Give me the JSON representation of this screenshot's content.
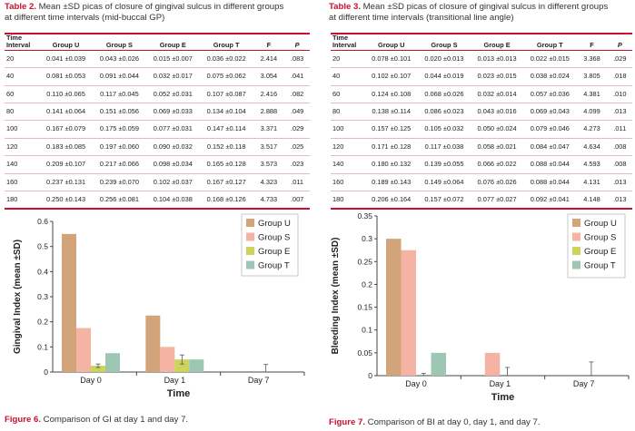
{
  "table2": {
    "label": "Table 2.",
    "caption_line1": " Mean ±SD picas of closure of gingival sulcus in different groups",
    "caption_line2": "at different time intervals (mid-buccal GP)",
    "headers": [
      "Time Interval",
      "Group U",
      "Group S",
      "Group E",
      "Group T",
      "F",
      "P"
    ],
    "rows": [
      [
        "20",
        "0.041 ±0.039",
        "0.043 ±0.026",
        "0.015 ±0.007",
        "0.036 ±0.022",
        "2.414",
        ".083"
      ],
      [
        "40",
        "0.081 ±0.053",
        "0.091 ±0.044",
        "0.032 ±0.017",
        "0.075 ±0.062",
        "3.054",
        ".041"
      ],
      [
        "60",
        "0.110 ±0.065",
        "0.117 ±0.045",
        "0.052 ±0.031",
        "0.107 ±0.087",
        "2.416",
        ".082"
      ],
      [
        "80",
        "0.141 ±0.064",
        "0.151 ±0.056",
        "0.069 ±0.033",
        "0.134 ±0.104",
        "2.888",
        ".049"
      ],
      [
        "100",
        "0.167 ±0.079",
        "0.175 ±0.059",
        "0.077 ±0.031",
        "0.147 ±0.114",
        "3.371",
        ".029"
      ],
      [
        "120",
        "0.183 ±0.085",
        "0.197 ±0.060",
        "0.090 ±0.032",
        "0.152 ±0.118",
        "3.517",
        ".025"
      ],
      [
        "140",
        "0.209 ±0.107",
        "0.217 ±0.066",
        "0.098 ±0.034",
        "0.165 ±0.128",
        "3.573",
        ".023"
      ],
      [
        "160",
        "0.237 ±0.131",
        "0.239 ±0.070",
        "0.102 ±0.037",
        "0.167 ±0.127",
        "4.323",
        ".011"
      ],
      [
        "180",
        "0.250 ±0.143",
        "0.256 ±0.081",
        "0.104 ±0.038",
        "0.168 ±0.126",
        "4.733",
        ".007"
      ]
    ]
  },
  "table3": {
    "label": "Table 3.",
    "caption_line1": " Mean ±SD picas of closure of gingival sulcus in different groups",
    "caption_line2": "at different time intervals (transitional line angle)",
    "headers": [
      "Time Interval",
      "Group U",
      "Group S",
      "Group E",
      "Group T",
      "F",
      "P"
    ],
    "rows": [
      [
        "20",
        "0.078 ±0.101",
        "0.020 ±0.013",
        "0.013 ±0.013",
        "0.022 ±0.015",
        "3.368",
        ".029"
      ],
      [
        "40",
        "0.102 ±0.107",
        "0.044 ±0.019",
        "0.023 ±0.015",
        "0.038 ±0.024",
        "3.805",
        ".018"
      ],
      [
        "60",
        "0.124 ±0.108",
        "0.068 ±0.026",
        "0.032 ±0.014",
        "0.057 ±0.036",
        "4.381",
        ".010"
      ],
      [
        "80",
        "0.138 ±0.114",
        "0.086 ±0.023",
        "0.043 ±0.016",
        "0.069 ±0.043",
        "4.099",
        ".013"
      ],
      [
        "100",
        "0.157 ±0.125",
        "0.105 ±0.032",
        "0.050 ±0.024",
        "0.079 ±0.046",
        "4.273",
        ".011"
      ],
      [
        "120",
        "0.171 ±0.128",
        "0.117 ±0.038",
        "0.058 ±0.021",
        "0.084 ±0.047",
        "4.634",
        ".008"
      ],
      [
        "140",
        "0.180 ±0.132",
        "0.139 ±0.055",
        "0.066 ±0.022",
        "0.088 ±0.044",
        "4.593",
        ".008"
      ],
      [
        "160",
        "0.189 ±0.143",
        "0.149 ±0.064",
        "0.076 ±0.026",
        "0.088 ±0.044",
        "4.131",
        ".013"
      ],
      [
        "180",
        "0.206 ±0.164",
        "0.157 ±0.072",
        "0.077 ±0.027",
        "0.092 ±0.041",
        "4.148",
        ".013"
      ]
    ]
  },
  "colors": {
    "accent_red": "#c8102e",
    "group_u": "#d3a37a",
    "group_s": "#f4b3a3",
    "group_e": "#ccd45c",
    "group_t": "#9dc6b3"
  },
  "figure6": {
    "label": "Figure 6.",
    "caption": " Comparison of GI at day 1 and day 7."
  },
  "figure7": {
    "label": "Figure 7.",
    "caption": " Comparison of BI at day 0, day 1, and day 7."
  },
  "chart_data": [
    {
      "type": "bar",
      "ylabel": "Gingival Index (mean ±SD)",
      "xlabel": "Time",
      "categories": [
        "Day 0",
        "Day 1",
        "Day 7"
      ],
      "ylim": [
        0,
        0.6
      ],
      "yticks": [
        0,
        0.1,
        0.2,
        0.3,
        0.4,
        0.5,
        0.6
      ],
      "ytick_labels": [
        "0",
        "0.1",
        "0.2",
        "0.3",
        "0.4",
        "0.5",
        "0.6"
      ],
      "legend": "top-right",
      "series": [
        {
          "name": "Group U",
          "values": [
            0.55,
            0.225,
            0
          ],
          "err": [
            0,
            0,
            0
          ]
        },
        {
          "name": "Group S",
          "values": [
            0.175,
            0.1,
            0
          ],
          "err": [
            0,
            0,
            0
          ]
        },
        {
          "name": "Group E",
          "values": [
            0.025,
            0.05,
            0
          ],
          "err": [
            0.007,
            0.018,
            0.03
          ]
        },
        {
          "name": "Group T",
          "values": [
            0.075,
            0.05,
            0
          ],
          "err": [
            0,
            0,
            0
          ]
        }
      ]
    },
    {
      "type": "bar",
      "ylabel": "Bleeding Index (mean ±SD)",
      "xlabel": "Time",
      "categories": [
        "Day 0",
        "Day 1",
        "Day 7"
      ],
      "ylim": [
        0,
        0.35
      ],
      "yticks": [
        0,
        0.05,
        0.1,
        0.15,
        0.2,
        0.25,
        0.3,
        0.35
      ],
      "ytick_labels": [
        "0",
        "0.05",
        "0.1",
        "0.15",
        "0.2",
        "0.25",
        "0.3",
        "0.35"
      ],
      "legend": "top-right",
      "series": [
        {
          "name": "Group U",
          "values": [
            0.3,
            0,
            0
          ],
          "err": [
            0,
            0,
            0
          ]
        },
        {
          "name": "Group S",
          "values": [
            0.275,
            0.05,
            0
          ],
          "err": [
            0,
            0,
            0
          ]
        },
        {
          "name": "Group E",
          "values": [
            0,
            0,
            0
          ],
          "err": [
            0.005,
            0.018,
            0.03
          ]
        },
        {
          "name": "Group T",
          "values": [
            0.05,
            0,
            0
          ],
          "err": [
            0,
            0,
            0
          ]
        }
      ]
    }
  ]
}
